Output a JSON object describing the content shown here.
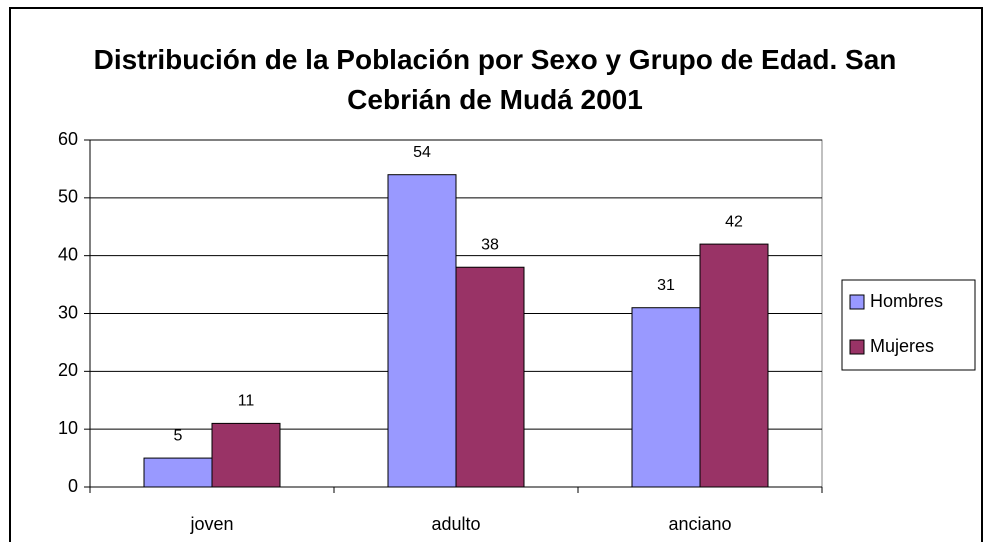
{
  "chart_data": {
    "type": "bar",
    "title": "Distribución de la Población por Sexo y Grupo de Edad. San Cebrián de Mudá 2001",
    "categories": [
      "joven",
      "adulto",
      "anciano"
    ],
    "series": [
      {
        "name": "Hombres",
        "color": "#9999ff",
        "values": [
          5,
          54,
          31
        ]
      },
      {
        "name": "Mujeres",
        "color": "#993366",
        "values": [
          11,
          38,
          42
        ]
      }
    ],
    "ylim": [
      0,
      60
    ],
    "yticks": [
      0,
      10,
      20,
      30,
      40,
      50,
      60
    ],
    "grid": true,
    "legend": "right"
  }
}
